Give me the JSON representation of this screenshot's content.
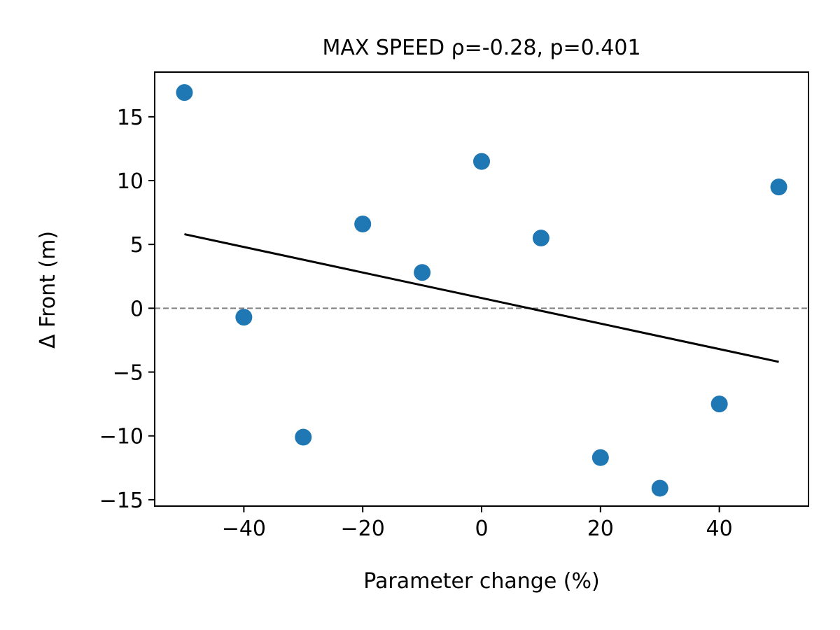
{
  "chart_data": {
    "type": "scatter",
    "title": "MAX SPEED  ρ=-0.28, p=0.401",
    "xlabel": "Parameter change (%)",
    "ylabel": "Δ Front (m)",
    "xlim": [
      -55,
      55
    ],
    "ylim": [
      -15.5,
      18.5
    ],
    "xticks": [
      -40,
      -20,
      0,
      20,
      40
    ],
    "xtick_labels": [
      "−40",
      "−20",
      "0",
      "20",
      "40"
    ],
    "yticks": [
      -15,
      -10,
      -5,
      0,
      5,
      10,
      15
    ],
    "ytick_labels": [
      "−15",
      "−10",
      "−5",
      "0",
      "5",
      "10",
      "15"
    ],
    "grid": false,
    "point_color": "#1f77b4",
    "series": [
      {
        "x": [
          -50,
          -40,
          -30,
          -20,
          -10,
          0,
          10,
          20,
          30,
          40,
          50
        ],
        "y": [
          16.9,
          -0.7,
          -10.1,
          6.6,
          2.8,
          11.5,
          5.5,
          -11.7,
          -14.1,
          -7.5,
          9.5
        ]
      }
    ],
    "fit_line": {
      "x": [
        -50,
        50
      ],
      "y": [
        5.8,
        -4.2
      ],
      "color": "#000000"
    },
    "reference_line": {
      "y": 0,
      "style": "dashed",
      "color": "#808080"
    }
  }
}
